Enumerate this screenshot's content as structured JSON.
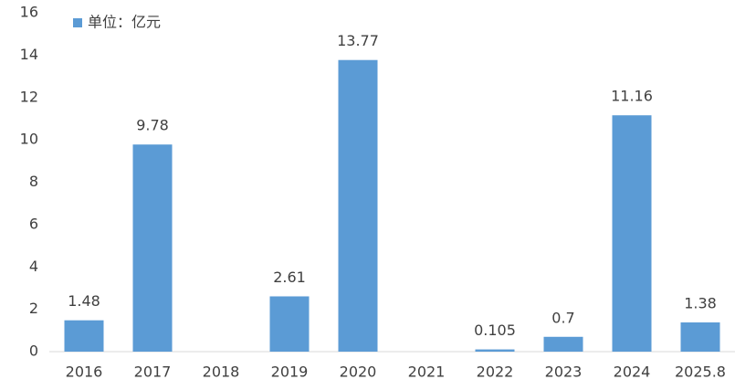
{
  "chart_data": {
    "type": "bar",
    "categories": [
      "2016",
      "2017",
      "2018",
      "2019",
      "2020",
      "2021",
      "2022",
      "2023",
      "2024",
      "2025.8"
    ],
    "series": [
      {
        "name": "单位：亿元",
        "color": "#5b9bd5",
        "values": [
          1.48,
          9.78,
          null,
          2.61,
          13.77,
          null,
          0.105,
          0.7,
          11.16,
          1.38
        ]
      }
    ],
    "ylim": [
      0,
      16
    ],
    "yticks": [
      0,
      2,
      4,
      6,
      8,
      10,
      12,
      14,
      16
    ],
    "grid": false,
    "legend": "top-left"
  }
}
